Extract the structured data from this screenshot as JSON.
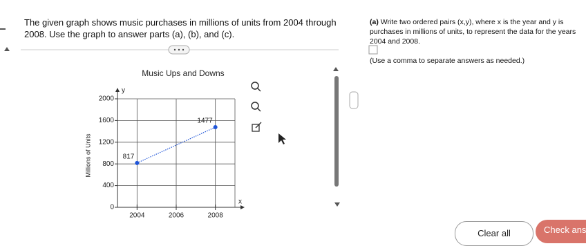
{
  "problem": {
    "text": "The given graph shows music purchases in millions of units from 2004 through 2008. Use the graph to answer parts (a), (b), and (c)."
  },
  "part_a": {
    "label": "(a)",
    "prompt": "Write two ordered pairs (x,y), where x is the year and y is purchases in millions of units, to represent the data for the years 2004 and 2008.",
    "hint": "(Use a comma to separate answers as needed.)"
  },
  "chart_data": {
    "type": "line",
    "title": "Music Ups and Downs",
    "y_label": "Millions of Units",
    "x_axis_letter": "x",
    "y_axis_letter": "y",
    "x": [
      2004,
      2008
    ],
    "series": [
      {
        "color": "#1f55d8",
        "values": [
          817,
          1477
        ]
      }
    ],
    "xlim": [
      2003,
      2009
    ],
    "xticks": [
      2004,
      2006,
      2008
    ],
    "ylim": [
      0,
      2000
    ],
    "yticks": [
      0,
      400,
      800,
      1200,
      1600,
      2000
    ],
    "grid": true
  },
  "buttons": {
    "clear": "Clear all",
    "check": "Check answer"
  }
}
